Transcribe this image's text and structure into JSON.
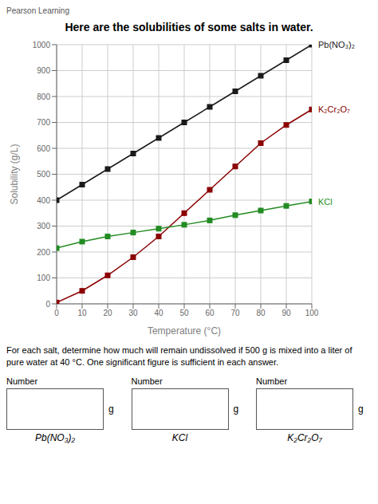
{
  "chart_data": {
    "type": "line",
    "title": "Here are the solubilities of some salts in water.",
    "x_label": "Temperature (°C)",
    "y_label": "Solubility (g/L)",
    "x": [
      0,
      10,
      20,
      30,
      40,
      50,
      60,
      70,
      80,
      90,
      100
    ],
    "series": [
      {
        "name": "Pb(NO₃)₂",
        "color": "#1a1a1a",
        "marker": "square",
        "values": [
          400,
          460,
          520,
          580,
          640,
          700,
          760,
          820,
          880,
          940,
          1000
        ]
      },
      {
        "name": "K₂Cr₂O₇",
        "color": "#8B0000",
        "marker": "square",
        "values": [
          5,
          50,
          110,
          180,
          260,
          350,
          440,
          530,
          620,
          690,
          750
        ]
      },
      {
        "name": "KCl",
        "color": "#228B22",
        "marker": "square",
        "values": [
          215,
          240,
          260,
          275,
          290,
          305,
          322,
          342,
          360,
          378,
          395
        ]
      }
    ],
    "xlim": [
      0,
      100
    ],
    "ylim": [
      0,
      1000
    ],
    "xticks": [
      0,
      10,
      20,
      30,
      40,
      50,
      60,
      70,
      80,
      90,
      100
    ],
    "yticks": [
      0,
      100,
      200,
      300,
      400,
      500,
      600,
      700,
      800,
      900,
      1000
    ],
    "grid": true,
    "source": "Pearson Learning",
    "question": [
      "For each salt, determine how much will remain undissolved if 500 g is mixed into a liter of",
      "pure water at 40 °C. One significant figure is sufficient in each answer."
    ],
    "answer_box_caption": "Number",
    "answer_boxes": [
      {
        "label": "Pb(NO₃)₂",
        "unit": "g"
      },
      {
        "label": "KCl",
        "unit": "g"
      },
      {
        "label": "K₂Cr₂O₇",
        "unit": "g"
      }
    ]
  }
}
